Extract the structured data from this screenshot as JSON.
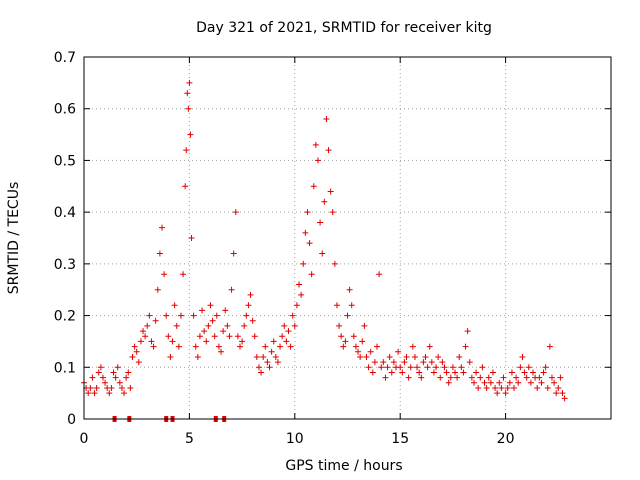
{
  "chart_data": {
    "type": "scatter",
    "title": "Day 321 of 2021, SRMTID for receiver kitg",
    "xlabel": "GPS time / hours",
    "ylabel": "SRMTID / TECUs",
    "xlim": [
      0,
      25
    ],
    "ylim": [
      0,
      0.7
    ],
    "xticks": [
      0,
      5,
      10,
      15,
      20
    ],
    "xtick_labels": [
      "0",
      "5",
      "10",
      "15",
      "20"
    ],
    "yticks": [
      0,
      0.1,
      0.2,
      0.3,
      0.4,
      0.5,
      0.6,
      0.7
    ],
    "ytick_labels": [
      "0",
      "0.1",
      "0.2",
      "0.3",
      "0.4",
      "0.5",
      "0.6",
      "0.7"
    ],
    "grid": true,
    "marker": "+",
    "color": "#e00000",
    "series": [
      {
        "name": "SRMTID",
        "x": [
          0.0,
          0.1,
          0.2,
          0.3,
          0.4,
          0.5,
          0.6,
          0.7,
          0.8,
          0.9,
          1.0,
          1.1,
          1.2,
          1.3,
          1.4,
          1.5,
          1.6,
          1.7,
          1.8,
          1.9,
          2.0,
          2.1,
          2.2,
          2.3,
          2.4,
          2.5,
          2.6,
          2.7,
          2.8,
          2.9,
          3.0,
          3.1,
          3.2,
          3.3,
          3.4,
          3.5,
          3.6,
          3.7,
          3.8,
          3.9,
          4.0,
          4.1,
          4.2,
          4.3,
          4.4,
          4.5,
          4.6,
          4.7,
          4.8,
          4.85,
          4.9,
          4.95,
          5.0,
          5.05,
          5.1,
          5.2,
          5.3,
          5.4,
          5.5,
          5.6,
          5.7,
          5.8,
          5.9,
          6.0,
          6.1,
          6.2,
          6.3,
          6.4,
          6.5,
          6.6,
          6.7,
          6.8,
          6.9,
          7.0,
          7.1,
          7.2,
          7.3,
          7.4,
          7.5,
          7.6,
          7.7,
          7.8,
          7.9,
          8.0,
          8.1,
          8.2,
          8.3,
          8.4,
          8.5,
          8.6,
          8.7,
          8.8,
          8.9,
          9.0,
          9.1,
          9.2,
          9.3,
          9.4,
          9.5,
          9.6,
          9.7,
          9.8,
          9.9,
          10.0,
          10.1,
          10.2,
          10.3,
          10.4,
          10.5,
          10.6,
          10.7,
          10.8,
          10.9,
          11.0,
          11.1,
          11.2,
          11.3,
          11.4,
          11.5,
          11.6,
          11.7,
          11.8,
          11.9,
          12.0,
          12.1,
          12.2,
          12.3,
          12.4,
          12.5,
          12.6,
          12.7,
          12.8,
          12.9,
          13.0,
          13.1,
          13.2,
          13.3,
          13.4,
          13.5,
          13.6,
          13.7,
          13.8,
          13.9,
          14.0,
          14.1,
          14.2,
          14.3,
          14.4,
          14.5,
          14.6,
          14.7,
          14.8,
          14.9,
          15.0,
          15.1,
          15.2,
          15.3,
          15.4,
          15.5,
          15.6,
          15.7,
          15.8,
          15.9,
          16.0,
          16.1,
          16.2,
          16.3,
          16.4,
          16.5,
          16.6,
          16.7,
          16.8,
          16.9,
          17.0,
          17.1,
          17.2,
          17.3,
          17.4,
          17.5,
          17.6,
          17.7,
          17.8,
          17.9,
          18.0,
          18.1,
          18.2,
          18.3,
          18.4,
          18.5,
          18.6,
          18.7,
          18.8,
          18.9,
          19.0,
          19.1,
          19.2,
          19.3,
          19.4,
          19.5,
          19.6,
          19.7,
          19.8,
          19.9,
          20.0,
          20.1,
          20.2,
          20.3,
          20.4,
          20.5,
          20.6,
          20.7,
          20.8,
          20.9,
          21.0,
          21.1,
          21.2,
          21.3,
          21.4,
          21.5,
          21.6,
          21.7,
          21.8,
          21.9,
          22.0,
          22.1,
          22.2,
          22.3,
          22.4,
          22.5,
          22.6,
          22.7,
          22.8
        ],
        "y": [
          0.07,
          0.06,
          0.05,
          0.06,
          0.08,
          0.05,
          0.06,
          0.09,
          0.1,
          0.08,
          0.07,
          0.06,
          0.05,
          0.06,
          0.09,
          0.08,
          0.1,
          0.07,
          0.06,
          0.05,
          0.08,
          0.09,
          0.06,
          0.12,
          0.14,
          0.13,
          0.11,
          0.15,
          0.17,
          0.16,
          0.18,
          0.2,
          0.15,
          0.14,
          0.19,
          0.25,
          0.32,
          0.37,
          0.28,
          0.2,
          0.16,
          0.12,
          0.15,
          0.22,
          0.18,
          0.14,
          0.2,
          0.28,
          0.45,
          0.52,
          0.63,
          0.6,
          0.65,
          0.55,
          0.35,
          0.2,
          0.14,
          0.12,
          0.16,
          0.21,
          0.17,
          0.15,
          0.18,
          0.22,
          0.19,
          0.16,
          0.2,
          0.14,
          0.13,
          0.17,
          0.21,
          0.18,
          0.16,
          0.25,
          0.32,
          0.4,
          0.16,
          0.14,
          0.15,
          0.18,
          0.2,
          0.22,
          0.24,
          0.19,
          0.16,
          0.12,
          0.1,
          0.09,
          0.12,
          0.14,
          0.11,
          0.1,
          0.13,
          0.15,
          0.12,
          0.11,
          0.14,
          0.16,
          0.18,
          0.15,
          0.17,
          0.14,
          0.2,
          0.18,
          0.22,
          0.26,
          0.24,
          0.3,
          0.36,
          0.4,
          0.34,
          0.28,
          0.45,
          0.53,
          0.5,
          0.38,
          0.32,
          0.42,
          0.58,
          0.52,
          0.44,
          0.4,
          0.3,
          0.22,
          0.18,
          0.16,
          0.14,
          0.15,
          0.2,
          0.25,
          0.22,
          0.16,
          0.14,
          0.13,
          0.12,
          0.15,
          0.18,
          0.12,
          0.1,
          0.13,
          0.09,
          0.11,
          0.14,
          0.28,
          0.1,
          0.11,
          0.08,
          0.1,
          0.12,
          0.09,
          0.11,
          0.1,
          0.13,
          0.1,
          0.09,
          0.11,
          0.12,
          0.08,
          0.1,
          0.14,
          0.12,
          0.1,
          0.09,
          0.08,
          0.11,
          0.12,
          0.1,
          0.14,
          0.11,
          0.09,
          0.1,
          0.12,
          0.08,
          0.11,
          0.1,
          0.09,
          0.07,
          0.08,
          0.1,
          0.09,
          0.08,
          0.12,
          0.1,
          0.09,
          0.14,
          0.17,
          0.11,
          0.08,
          0.07,
          0.09,
          0.06,
          0.08,
          0.1,
          0.07,
          0.06,
          0.08,
          0.07,
          0.09,
          0.06,
          0.05,
          0.07,
          0.06,
          0.08,
          0.05,
          0.06,
          0.07,
          0.09,
          0.06,
          0.08,
          0.07,
          0.1,
          0.12,
          0.09,
          0.08,
          0.1,
          0.07,
          0.09,
          0.08,
          0.06,
          0.08,
          0.07,
          0.09,
          0.1,
          0.06,
          0.14,
          0.08,
          0.07,
          0.05,
          0.06,
          0.08,
          0.05,
          0.04
        ]
      }
    ],
    "bottom_markers_x": [
      1.45,
      2.15,
      3.9,
      4.2,
      6.25,
      6.65
    ]
  }
}
